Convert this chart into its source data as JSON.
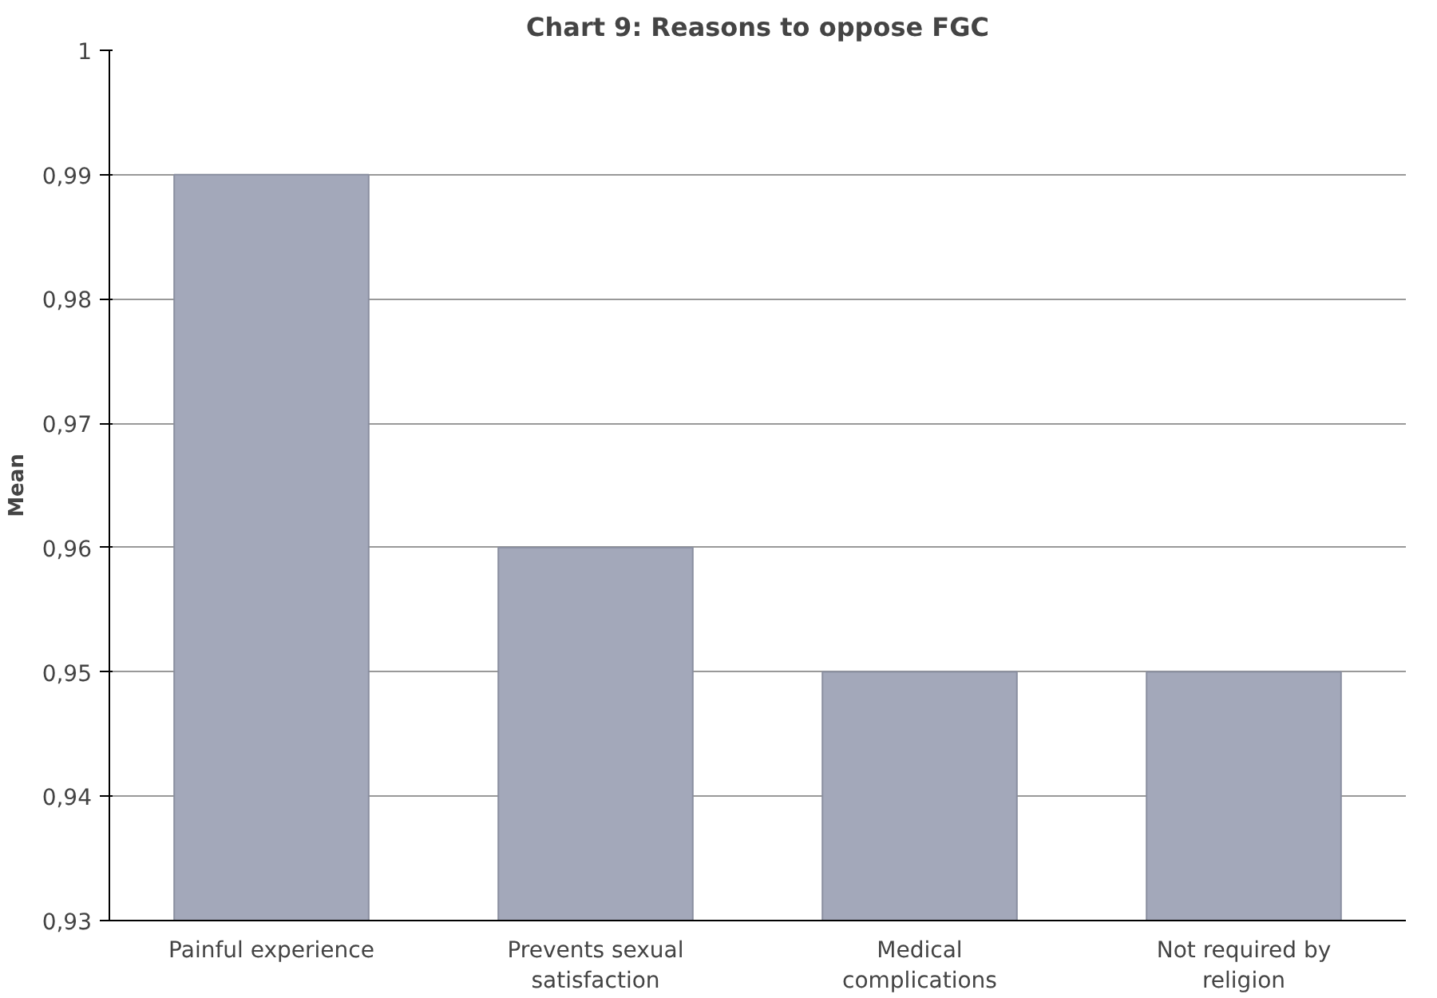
{
  "chart_data": {
    "type": "bar",
    "title": "Chart 9: Reasons to oppose FGC",
    "ylabel": "Mean",
    "categories": [
      "Painful experience",
      "Prevents sexual satisfaction",
      "Medical complications",
      "Not required by religion"
    ],
    "values": [
      0.99,
      0.96,
      0.95,
      0.95
    ],
    "color": "#a3a8ba",
    "ylim": [
      0.93,
      1
    ],
    "yticks": [
      {
        "value": 0.93,
        "label": "0,93"
      },
      {
        "value": 0.94,
        "label": "0,94"
      },
      {
        "value": 0.95,
        "label": "0,95"
      },
      {
        "value": 0.96,
        "label": "0,96"
      },
      {
        "value": 0.97,
        "label": "0,97"
      },
      {
        "value": 0.98,
        "label": "0,98"
      },
      {
        "value": 0.99,
        "label": "0,99"
      },
      {
        "value": 1,
        "label": "1"
      }
    ],
    "grid": "y"
  }
}
